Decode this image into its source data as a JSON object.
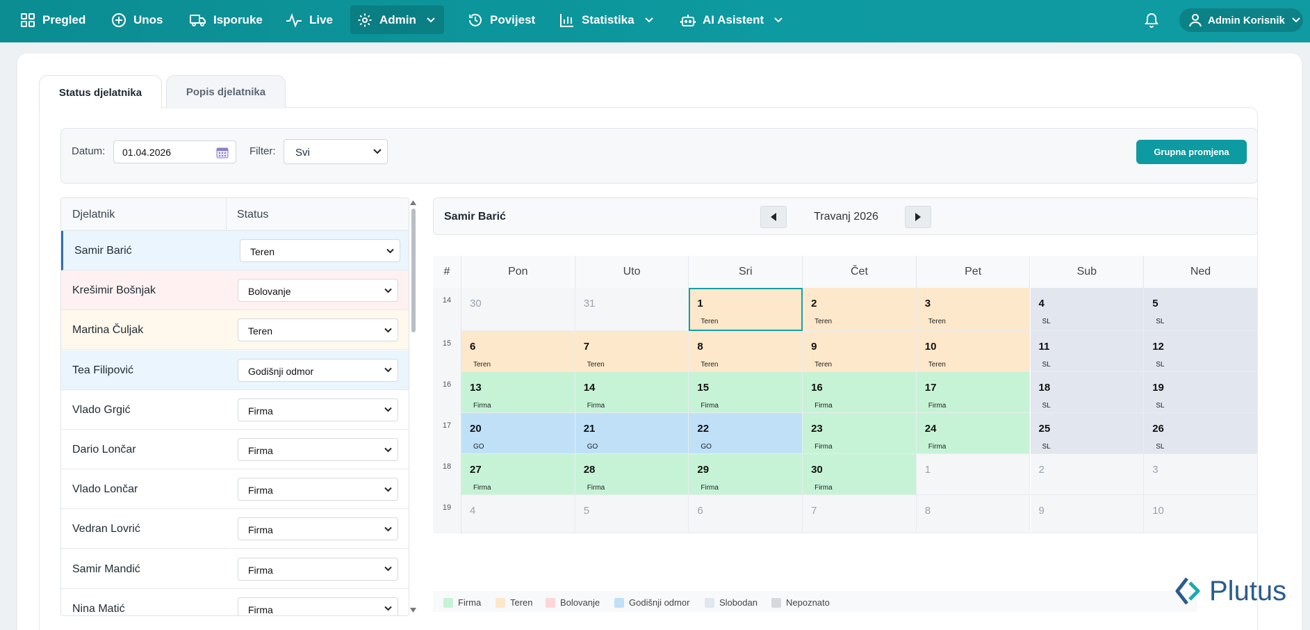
{
  "nav": {
    "items": [
      {
        "label": "Pregled",
        "icon": "grid-icon"
      },
      {
        "label": "Unos",
        "icon": "plus-circle-icon"
      },
      {
        "label": "Isporuke",
        "icon": "truck-icon"
      },
      {
        "label": "Live",
        "icon": "activity-icon"
      },
      {
        "label": "Admin",
        "icon": "gear-icon"
      },
      {
        "label": "Povijest",
        "icon": "history-icon"
      },
      {
        "label": "Statistika",
        "icon": "bar-chart-icon"
      },
      {
        "label": "AI Asistent",
        "icon": "robot-icon"
      }
    ],
    "active": "Admin",
    "user_label": "Admin Korisnik"
  },
  "tabs": [
    "Status djelatnika",
    "Popis djelatnika"
  ],
  "filters": {
    "date_label": "Datum:",
    "date_value": "01.04.2026",
    "filter_label": "Filter:",
    "filter_value": "Svi",
    "group_change_button": "Grupna promjena"
  },
  "employee_table": {
    "columns": [
      "Djelatnik",
      "Status"
    ],
    "rows": [
      {
        "name": "Samir Barić",
        "status": "Teren"
      },
      {
        "name": "Krešimir Bošnjak",
        "status": "Bolovanje"
      },
      {
        "name": "Martina Čuljak",
        "status": "Teren"
      },
      {
        "name": "Tea Filipović",
        "status": "Godišnji odmor"
      },
      {
        "name": "Vlado Grgić",
        "status": "Firma"
      },
      {
        "name": "Dario Lončar",
        "status": "Firma"
      },
      {
        "name": "Vlado Lončar",
        "status": "Firma"
      },
      {
        "name": "Vedran Lovrić",
        "status": "Firma"
      },
      {
        "name": "Samir Mandić",
        "status": "Firma"
      },
      {
        "name": "Nina Matić",
        "status": "Firma"
      }
    ],
    "selected": "Samir Barić"
  },
  "calendar": {
    "employee": "Samir Barić",
    "month": "Travanj 2026",
    "week_col_label": "#",
    "weekdays": [
      "Pon",
      "Uto",
      "Sri",
      "Čet",
      "Pet",
      "Sub",
      "Ned"
    ],
    "weeks": [
      {
        "num": "14",
        "days": [
          {
            "d": "30",
            "other": true
          },
          {
            "d": "31",
            "other": true
          },
          {
            "d": "1",
            "label": "Teren",
            "type": "teren",
            "today": true
          },
          {
            "d": "2",
            "label": "Teren",
            "type": "teren"
          },
          {
            "d": "3",
            "label": "Teren",
            "type": "teren"
          },
          {
            "d": "4",
            "label": "SL",
            "type": "slobodan"
          },
          {
            "d": "5",
            "label": "SL",
            "type": "slobodan"
          }
        ]
      },
      {
        "num": "15",
        "days": [
          {
            "d": "6",
            "label": "Teren",
            "type": "teren"
          },
          {
            "d": "7",
            "label": "Teren",
            "type": "teren"
          },
          {
            "d": "8",
            "label": "Teren",
            "type": "teren"
          },
          {
            "d": "9",
            "label": "Teren",
            "type": "teren"
          },
          {
            "d": "10",
            "label": "Teren",
            "type": "teren"
          },
          {
            "d": "11",
            "label": "SL",
            "type": "slobodan"
          },
          {
            "d": "12",
            "label": "SL",
            "type": "slobodan"
          }
        ]
      },
      {
        "num": "16",
        "days": [
          {
            "d": "13",
            "label": "Firma",
            "type": "firma"
          },
          {
            "d": "14",
            "label": "Firma",
            "type": "firma"
          },
          {
            "d": "15",
            "label": "Firma",
            "type": "firma"
          },
          {
            "d": "16",
            "label": "Firma",
            "type": "firma"
          },
          {
            "d": "17",
            "label": "Firma",
            "type": "firma"
          },
          {
            "d": "18",
            "label": "SL",
            "type": "slobodan"
          },
          {
            "d": "19",
            "label": "SL",
            "type": "slobodan"
          }
        ]
      },
      {
        "num": "17",
        "days": [
          {
            "d": "20",
            "label": "GO",
            "type": "godisnji"
          },
          {
            "d": "21",
            "label": "GO",
            "type": "godisnji"
          },
          {
            "d": "22",
            "label": "GO",
            "type": "godisnji"
          },
          {
            "d": "23",
            "label": "Firma",
            "type": "firma"
          },
          {
            "d": "24",
            "label": "Firma",
            "type": "firma"
          },
          {
            "d": "25",
            "label": "SL",
            "type": "slobodan"
          },
          {
            "d": "26",
            "label": "SL",
            "type": "slobodan"
          }
        ]
      },
      {
        "num": "18",
        "days": [
          {
            "d": "27",
            "label": "Firma",
            "type": "firma"
          },
          {
            "d": "28",
            "label": "Firma",
            "type": "firma"
          },
          {
            "d": "29",
            "label": "Firma",
            "type": "firma"
          },
          {
            "d": "30",
            "label": "Firma",
            "type": "firma"
          },
          {
            "d": "1",
            "other": true
          },
          {
            "d": "2",
            "other": true
          },
          {
            "d": "3",
            "other": true
          }
        ]
      },
      {
        "num": "19",
        "days": [
          {
            "d": "4",
            "other": true
          },
          {
            "d": "5",
            "other": true
          },
          {
            "d": "6",
            "other": true
          },
          {
            "d": "7",
            "other": true
          },
          {
            "d": "8",
            "other": true
          },
          {
            "d": "9",
            "other": true
          },
          {
            "d": "10",
            "other": true
          }
        ]
      }
    ]
  },
  "legend": [
    {
      "label": "Firma",
      "type": "firma"
    },
    {
      "label": "Teren",
      "type": "teren"
    },
    {
      "label": "Bolovanje",
      "type": "bolovanje"
    },
    {
      "label": "Godišnji odmor",
      "type": "godisnji"
    },
    {
      "label": "Slobodan",
      "type": "slobodan"
    },
    {
      "label": "Nepoznato",
      "type": "nepoznato"
    }
  ],
  "colors": {
    "firma": "#c6f3d6",
    "teren": "#fde8cb",
    "bolovanje": "#fdd6d6",
    "godisnji": "#bfe0f7",
    "slobodan": "#e2e6ee",
    "nepoznato": "#d6d8db",
    "other": "#f4f6f8",
    "accent": "#0d9aa0",
    "row_teren": "#fff8ec",
    "row_bolovanje": "#fff1f1",
    "row_godisnji": "#eaf5fd",
    "row_selected": "#eaf5fd"
  },
  "logo_text": "Plutus"
}
